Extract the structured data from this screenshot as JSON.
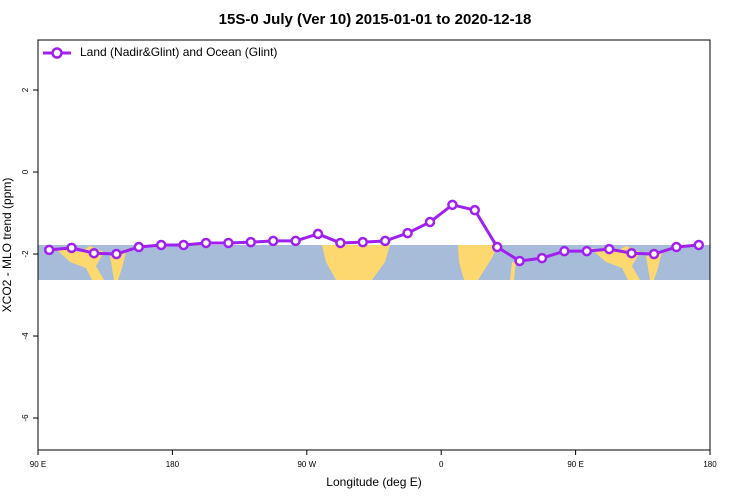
{
  "chart_data": {
    "type": "line",
    "title": "15S-0 July (Ver 10)   2015-01-01 to 2020-12-18",
    "x_label": "Longitude (deg E)",
    "y_label": "XCO2 - MLO trend (ppm)",
    "x": [
      97.5,
      112.5,
      127.5,
      142.5,
      157.5,
      172.5,
      187.5,
      202.5,
      217.5,
      232.5,
      247.5,
      262.5,
      277.5,
      292.5,
      307.5,
      322.5,
      337.5,
      352.5,
      367.5,
      382.5,
      397.5,
      412.5,
      427.5,
      442.5,
      457.5,
      472.5,
      487.5,
      502.5,
      517.5,
      532.5
    ],
    "series": [
      {
        "name": "Land (Nadir&Glint) and Ocean (Glint)",
        "color": "#a020f0",
        "values": [
          -1.9,
          -1.85,
          -1.98,
          -2.0,
          -1.83,
          -1.78,
          -1.78,
          -1.73,
          -1.73,
          -1.71,
          -1.68,
          -1.68,
          -1.51,
          -1.73,
          -1.71,
          -1.68,
          -1.49,
          -1.22,
          -0.8,
          -0.93,
          -1.83,
          -2.17,
          -2.1,
          -1.93,
          -1.93,
          -1.88,
          -1.98,
          -2.0,
          -1.83,
          -1.78
        ]
      }
    ],
    "xlim": [
      90,
      540
    ],
    "xticks": [
      {
        "value": 90,
        "label": "90 E"
      },
      {
        "value": 180,
        "label": "180"
      },
      {
        "value": 270,
        "label": "90 W"
      },
      {
        "value": 360,
        "label": "0"
      },
      {
        "value": 450,
        "label": "90 E"
      },
      {
        "value": 540,
        "label": "180"
      }
    ],
    "ylim": [
      -6.78,
      3.22
    ],
    "yticks": [
      2,
      0,
      -2,
      -4,
      -6
    ],
    "legend": "top-left"
  }
}
